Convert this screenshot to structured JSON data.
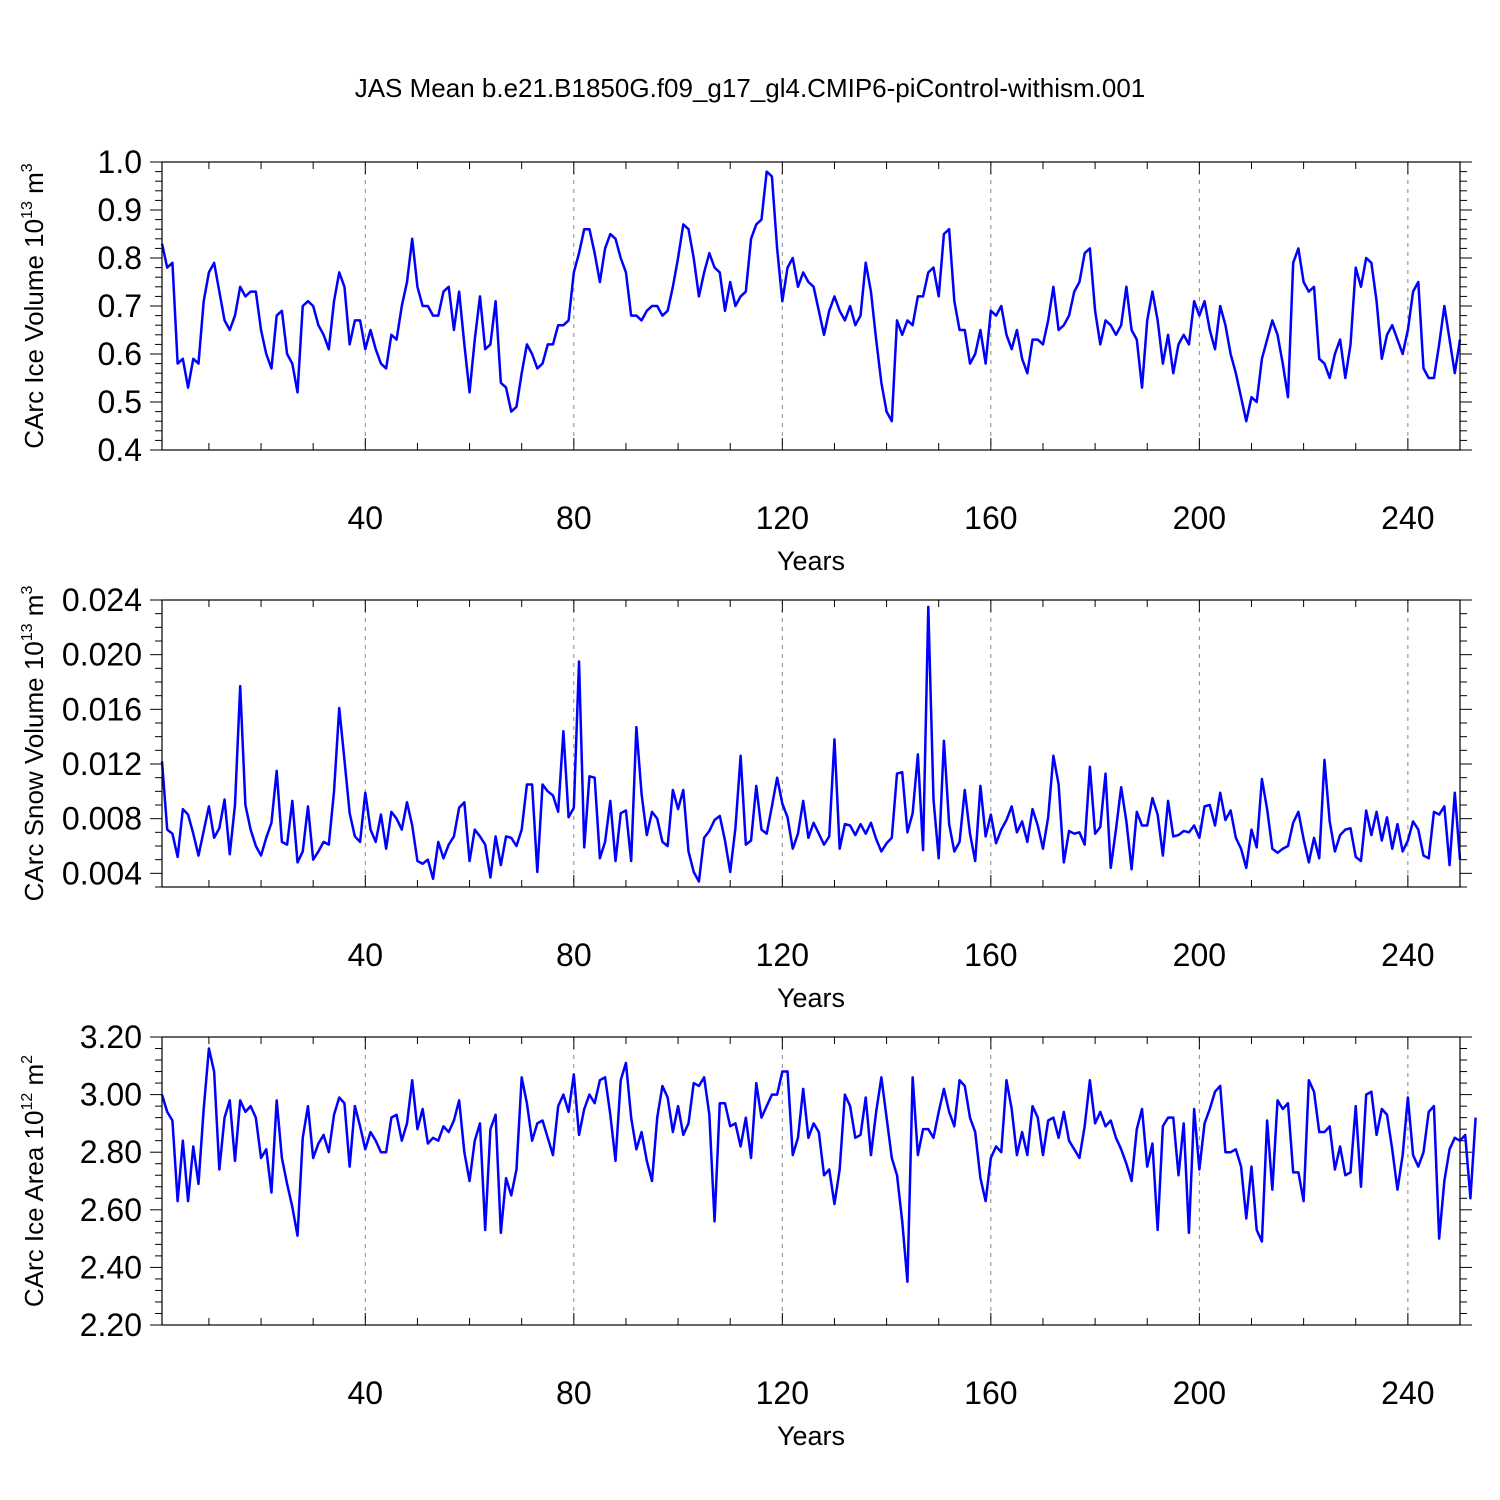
{
  "title": "JAS Mean b.e21.B1850G.f09_g17_gl4.CMIP6-piControl-withism.001",
  "colors": {
    "line": "#0000ff",
    "axis": "#000000",
    "grid": "#888888",
    "background": "#ffffff"
  },
  "chart_data": [
    {
      "type": "line",
      "xlabel": "Years",
      "ylabel_parts": [
        "CArc Ice Volume 10",
        "13",
        " m",
        "3"
      ],
      "xlim": [
        1,
        250
      ],
      "ylim": [
        0.4,
        1.0
      ],
      "xticks": [
        40,
        80,
        120,
        160,
        200,
        240
      ],
      "xtick_labels": [
        "40",
        "80",
        "120",
        "160",
        "200",
        "240"
      ],
      "yticks": [
        0.4,
        0.5,
        0.6,
        0.7,
        0.8,
        0.9,
        1.0
      ],
      "ytick_labels": [
        "0.4",
        "0.5",
        "0.6",
        "0.7",
        "0.8",
        "0.9",
        "1.0"
      ],
      "y_minor_step": 0.02,
      "grid": "vertical dashed at major x ticks",
      "x_start": 1,
      "series": [
        {
          "values": [
            0.83,
            0.78,
            0.79,
            0.58,
            0.59,
            0.53,
            0.59,
            0.58,
            0.71,
            0.77,
            0.79,
            0.73,
            0.67,
            0.65,
            0.68,
            0.74,
            0.72,
            0.73,
            0.73,
            0.65,
            0.6,
            0.57,
            0.68,
            0.69,
            0.6,
            0.58,
            0.52,
            0.7,
            0.71,
            0.7,
            0.66,
            0.64,
            0.61,
            0.71,
            0.77,
            0.74,
            0.62,
            0.67,
            0.67,
            0.61,
            0.65,
            0.61,
            0.58,
            0.57,
            0.64,
            0.63,
            0.7,
            0.75,
            0.84,
            0.74,
            0.7,
            0.7,
            0.68,
            0.68,
            0.73,
            0.74,
            0.65,
            0.73,
            0.62,
            0.52,
            0.63,
            0.72,
            0.61,
            0.62,
            0.71,
            0.54,
            0.53,
            0.48,
            0.49,
            0.56,
            0.62,
            0.6,
            0.57,
            0.58,
            0.62,
            0.62,
            0.66,
            0.66,
            0.67,
            0.77,
            0.81,
            0.86,
            0.86,
            0.81,
            0.75,
            0.82,
            0.85,
            0.84,
            0.8,
            0.77,
            0.68,
            0.68,
            0.67,
            0.69,
            0.7,
            0.7,
            0.68,
            0.69,
            0.74,
            0.8,
            0.87,
            0.86,
            0.8,
            0.72,
            0.77,
            0.81,
            0.78,
            0.77,
            0.69,
            0.75,
            0.7,
            0.72,
            0.73,
            0.84,
            0.87,
            0.88,
            0.98,
            0.97,
            0.82,
            0.71,
            0.78,
            0.8,
            0.74,
            0.77,
            0.75,
            0.74,
            0.69,
            0.64,
            0.69,
            0.72,
            0.69,
            0.67,
            0.7,
            0.66,
            0.68,
            0.79,
            0.73,
            0.63,
            0.54,
            0.48,
            0.46,
            0.67,
            0.64,
            0.67,
            0.66,
            0.72,
            0.72,
            0.77,
            0.78,
            0.72,
            0.85,
            0.86,
            0.71,
            0.65,
            0.65,
            0.58,
            0.6,
            0.65,
            0.58,
            0.69,
            0.68,
            0.7,
            0.64,
            0.61,
            0.65,
            0.59,
            0.56,
            0.63,
            0.63,
            0.62,
            0.67,
            0.74,
            0.65,
            0.66,
            0.68,
            0.73,
            0.75,
            0.81,
            0.82,
            0.69,
            0.62,
            0.67,
            0.66,
            0.64,
            0.66,
            0.74,
            0.65,
            0.63,
            0.53,
            0.67,
            0.73,
            0.67,
            0.58,
            0.64,
            0.56,
            0.62,
            0.64,
            0.62,
            0.71,
            0.68,
            0.71,
            0.65,
            0.61,
            0.7,
            0.66,
            0.6,
            0.56,
            0.51,
            0.46,
            0.51,
            0.5,
            0.59,
            0.63,
            0.67,
            0.64,
            0.58,
            0.51,
            0.79,
            0.82,
            0.75,
            0.73,
            0.74,
            0.59,
            0.58,
            0.55,
            0.6,
            0.63,
            0.55,
            0.62,
            0.78,
            0.74,
            0.8,
            0.79,
            0.71,
            0.59,
            0.64,
            0.66,
            0.63,
            0.6,
            0.65,
            0.73,
            0.75,
            0.57,
            0.55,
            0.55,
            0.62,
            0.7,
            0.63,
            0.56,
            0.63
          ]
        }
      ]
    },
    {
      "type": "line",
      "xlabel": "Years",
      "ylabel_parts": [
        "CArc Snow Volume 10",
        "13",
        " m",
        "3"
      ],
      "xlim": [
        1,
        250
      ],
      "ylim": [
        0.003,
        0.024
      ],
      "xticks": [
        40,
        80,
        120,
        160,
        200,
        240
      ],
      "xtick_labels": [
        "40",
        "80",
        "120",
        "160",
        "200",
        "240"
      ],
      "yticks": [
        0.004,
        0.008,
        0.012,
        0.016,
        0.02,
        0.024
      ],
      "ytick_labels": [
        "0.004",
        "0.008",
        "0.012",
        "0.016",
        "0.020",
        "0.024"
      ],
      "y_minor_step": 0.001,
      "grid": "vertical dashed at major x ticks",
      "x_start": 1,
      "series": [
        {
          "values": [
            0.0122,
            0.0072,
            0.0069,
            0.0052,
            0.0087,
            0.0083,
            0.0069,
            0.0053,
            0.0071,
            0.0089,
            0.0066,
            0.0073,
            0.0094,
            0.0054,
            0.009,
            0.0177,
            0.009,
            0.0072,
            0.006,
            0.0053,
            0.0066,
            0.0077,
            0.0115,
            0.0063,
            0.0061,
            0.0093,
            0.0048,
            0.0056,
            0.0089,
            0.005,
            0.0056,
            0.0063,
            0.0061,
            0.01,
            0.0161,
            0.0123,
            0.0084,
            0.0067,
            0.0063,
            0.0099,
            0.0072,
            0.0063,
            0.0083,
            0.0058,
            0.0085,
            0.008,
            0.0072,
            0.0092,
            0.0075,
            0.0049,
            0.0047,
            0.005,
            0.0036,
            0.0063,
            0.0051,
            0.0061,
            0.0067,
            0.0088,
            0.0092,
            0.0049,
            0.0072,
            0.0067,
            0.0061,
            0.0037,
            0.0067,
            0.0046,
            0.0067,
            0.0066,
            0.006,
            0.0072,
            0.0105,
            0.0105,
            0.0041,
            0.0105,
            0.01,
            0.0097,
            0.0085,
            0.0144,
            0.0081,
            0.0088,
            0.0195,
            0.0059,
            0.0111,
            0.011,
            0.0051,
            0.0063,
            0.0093,
            0.0049,
            0.0084,
            0.0086,
            0.0049,
            0.0147,
            0.0098,
            0.0068,
            0.0085,
            0.008,
            0.0063,
            0.006,
            0.0101,
            0.0087,
            0.0101,
            0.0056,
            0.0041,
            0.0034,
            0.0066,
            0.0071,
            0.0079,
            0.0082,
            0.0064,
            0.0041,
            0.0073,
            0.0126,
            0.0061,
            0.0064,
            0.0104,
            0.0072,
            0.0069,
            0.0089,
            0.011,
            0.0091,
            0.0081,
            0.0058,
            0.0069,
            0.0093,
            0.0066,
            0.0077,
            0.0069,
            0.0061,
            0.0067,
            0.0138,
            0.0058,
            0.0076,
            0.0075,
            0.0068,
            0.0076,
            0.0069,
            0.0077,
            0.0065,
            0.0056,
            0.0062,
            0.0066,
            0.0113,
            0.0114,
            0.007,
            0.0084,
            0.0127,
            0.0057,
            0.0235,
            0.0094,
            0.0051,
            0.0137,
            0.0076,
            0.0056,
            0.0063,
            0.0101,
            0.0069,
            0.0049,
            0.0104,
            0.0067,
            0.0083,
            0.0062,
            0.0072,
            0.0079,
            0.0089,
            0.007,
            0.0078,
            0.0063,
            0.0087,
            0.0075,
            0.0058,
            0.0081,
            0.0126,
            0.0105,
            0.0048,
            0.0071,
            0.0069,
            0.007,
            0.0061,
            0.0118,
            0.0069,
            0.0074,
            0.0113,
            0.0044,
            0.0072,
            0.0103,
            0.0078,
            0.0043,
            0.0085,
            0.0075,
            0.0075,
            0.0095,
            0.0083,
            0.0053,
            0.0093,
            0.0067,
            0.0068,
            0.0071,
            0.007,
            0.0075,
            0.0066,
            0.0089,
            0.009,
            0.0075,
            0.0099,
            0.0079,
            0.0086,
            0.0066,
            0.0058,
            0.0044,
            0.0072,
            0.0059,
            0.0109,
            0.0087,
            0.0058,
            0.0055,
            0.0058,
            0.006,
            0.0077,
            0.0085,
            0.0065,
            0.0048,
            0.0066,
            0.0051,
            0.0123,
            0.0078,
            0.0056,
            0.0068,
            0.0072,
            0.0073,
            0.0052,
            0.0049,
            0.0086,
            0.0068,
            0.0085,
            0.0064,
            0.0081,
            0.0058,
            0.0076,
            0.0056,
            0.0064,
            0.0078,
            0.0072,
            0.0053,
            0.0051,
            0.0085,
            0.0083,
            0.0089,
            0.0046,
            0.0099,
            0.005
          ]
        }
      ]
    },
    {
      "type": "line",
      "xlabel": "Years",
      "ylabel_parts": [
        "CArc Ice Area 10",
        "12",
        " m",
        "2"
      ],
      "xlim": [
        1,
        250
      ],
      "ylim": [
        2.2,
        3.2
      ],
      "xticks": [
        40,
        80,
        120,
        160,
        200,
        240
      ],
      "xtick_labels": [
        "40",
        "80",
        "120",
        "160",
        "200",
        "240"
      ],
      "yticks": [
        2.2,
        2.4,
        2.6,
        2.8,
        3.0,
        3.2
      ],
      "ytick_labels": [
        "2.20",
        "2.40",
        "2.60",
        "2.80",
        "3.00",
        "3.20"
      ],
      "y_minor_step": 0.04,
      "grid": "vertical dashed at major x ticks",
      "x_start": 1,
      "series": [
        {
          "values": [
            3.0,
            2.94,
            2.91,
            2.63,
            2.84,
            2.63,
            2.82,
            2.69,
            2.95,
            3.16,
            3.08,
            2.74,
            2.92,
            2.98,
            2.77,
            2.98,
            2.94,
            2.96,
            2.92,
            2.78,
            2.81,
            2.66,
            2.98,
            2.78,
            2.69,
            2.61,
            2.51,
            2.85,
            2.96,
            2.78,
            2.83,
            2.86,
            2.8,
            2.93,
            2.99,
            2.97,
            2.75,
            2.96,
            2.89,
            2.81,
            2.87,
            2.84,
            2.8,
            2.8,
            2.92,
            2.93,
            2.84,
            2.9,
            3.05,
            2.88,
            2.95,
            2.83,
            2.85,
            2.84,
            2.89,
            2.87,
            2.91,
            2.98,
            2.8,
            2.7,
            2.84,
            2.9,
            2.53,
            2.88,
            2.93,
            2.52,
            2.71,
            2.65,
            2.74,
            3.06,
            2.97,
            2.84,
            2.9,
            2.91,
            2.85,
            2.79,
            2.96,
            3.0,
            2.94,
            3.07,
            2.86,
            2.95,
            3.0,
            2.97,
            3.05,
            3.06,
            2.93,
            2.77,
            3.05,
            3.11,
            2.92,
            2.81,
            2.87,
            2.77,
            2.7,
            2.92,
            3.03,
            2.99,
            2.87,
            2.96,
            2.86,
            2.9,
            3.04,
            3.03,
            3.06,
            2.93,
            2.56,
            2.97,
            2.97,
            2.89,
            2.9,
            2.82,
            2.92,
            2.78,
            3.04,
            2.92,
            2.96,
            3.0,
            3.0,
            3.08,
            3.08,
            2.79,
            2.85,
            3.02,
            2.85,
            2.9,
            2.87,
            2.72,
            2.74,
            2.62,
            2.74,
            3.0,
            2.96,
            2.85,
            2.86,
            2.99,
            2.79,
            2.94,
            3.06,
            2.92,
            2.78,
            2.72,
            2.56,
            2.35,
            3.06,
            2.79,
            2.88,
            2.88,
            2.85,
            2.94,
            3.02,
            2.94,
            2.89,
            3.05,
            3.03,
            2.92,
            2.87,
            2.71,
            2.63,
            2.78,
            2.82,
            2.8,
            3.05,
            2.95,
            2.79,
            2.87,
            2.79,
            2.96,
            2.92,
            2.79,
            2.91,
            2.92,
            2.85,
            2.94,
            2.84,
            2.81,
            2.78,
            2.89,
            3.05,
            2.9,
            2.94,
            2.89,
            2.91,
            2.85,
            2.81,
            2.76,
            2.7,
            2.88,
            2.95,
            2.75,
            2.83,
            2.53,
            2.89,
            2.92,
            2.92,
            2.72,
            2.9,
            2.52,
            2.95,
            2.74,
            2.9,
            2.95,
            3.01,
            3.03,
            2.8,
            2.8,
            2.81,
            2.75,
            2.57,
            2.75,
            2.53,
            2.49,
            2.91,
            2.67,
            2.98,
            2.95,
            2.97,
            2.73,
            2.73,
            2.63,
            3.05,
            3.01,
            2.87,
            2.87,
            2.89,
            2.74,
            2.82,
            2.72,
            2.73,
            2.96,
            2.68,
            3.0,
            3.01,
            2.86,
            2.95,
            2.93,
            2.81,
            2.67,
            2.79,
            2.99,
            2.79,
            2.75,
            2.8,
            2.94,
            2.96,
            2.5,
            2.7,
            2.81,
            2.85,
            2.84,
            2.86,
            2.64,
            2.92
          ]
        }
      ]
    }
  ]
}
